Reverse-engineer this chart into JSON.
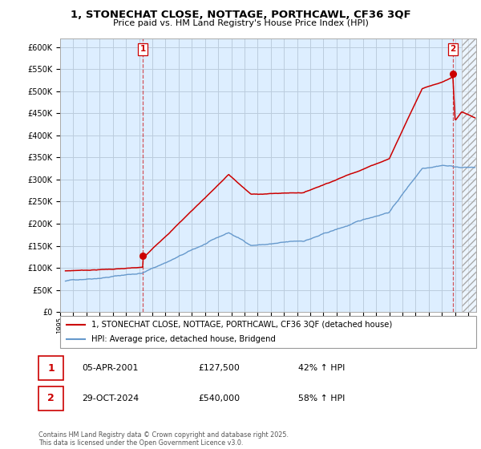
{
  "title_line1": "1, STONECHAT CLOSE, NOTTAGE, PORTHCAWL, CF36 3QF",
  "title_line2": "Price paid vs. HM Land Registry's House Price Index (HPI)",
  "ylim": [
    0,
    620000
  ],
  "xlim_min": 1995.4,
  "xlim_max": 2026.6,
  "transaction1": {
    "label": "1",
    "date": "05-APR-2001",
    "price": "£127,500",
    "hpi": "42% ↑ HPI",
    "year": 2001.27,
    "value": 127500
  },
  "transaction2": {
    "label": "2",
    "date": "29-OCT-2024",
    "price": "£540,000",
    "hpi": "58% ↑ HPI",
    "year": 2024.83,
    "value": 540000
  },
  "legend_line1": "1, STONECHAT CLOSE, NOTTAGE, PORTHCAWL, CF36 3QF (detached house)",
  "legend_line2": "HPI: Average price, detached house, Bridgend",
  "footer": "Contains HM Land Registry data © Crown copyright and database right 2025.\nThis data is licensed under the Open Government Licence v3.0.",
  "red_color": "#cc0000",
  "blue_color": "#6699cc",
  "chart_bg": "#ddeeff",
  "background_color": "#ffffff",
  "grid_color": "#bbccdd",
  "hatch_color": "#cccccc"
}
